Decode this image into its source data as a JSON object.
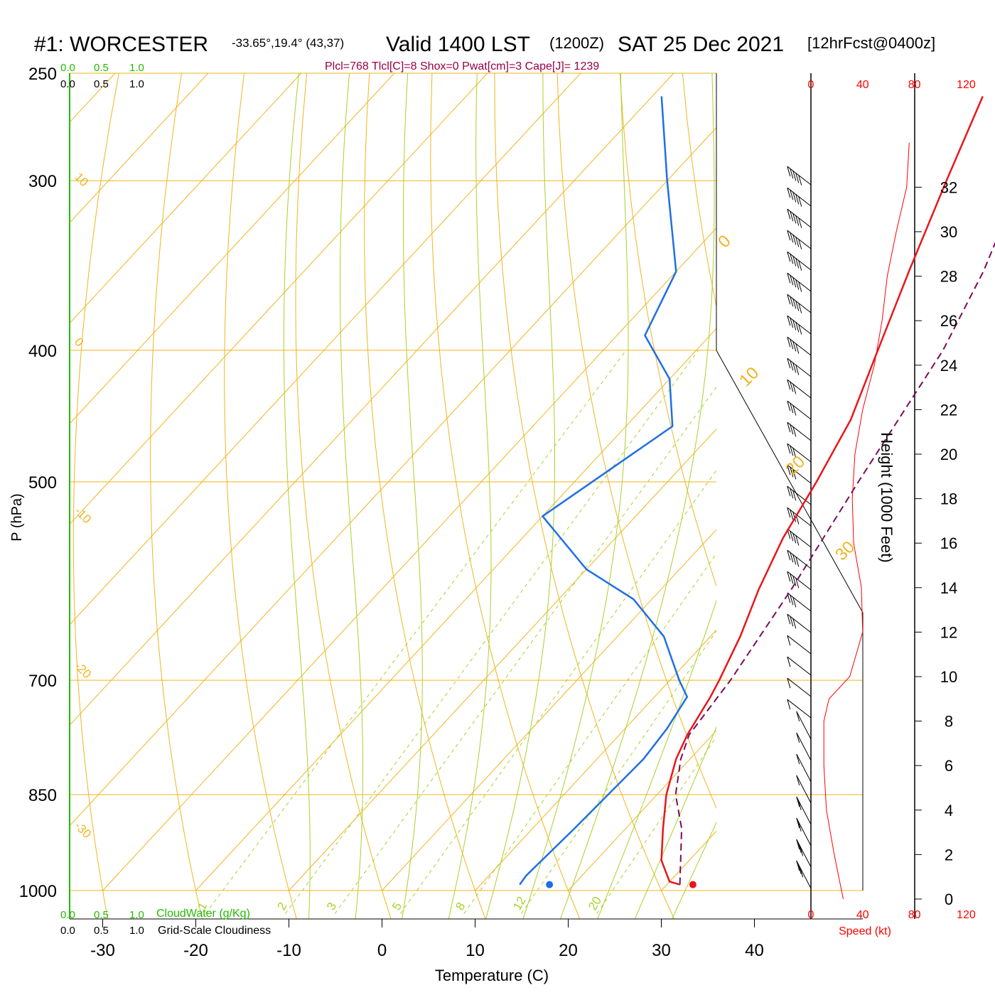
{
  "header": {
    "station": "#1: WORCESTER",
    "coords": "-33.65°,19.4° (43,37)",
    "valid": "Valid 1400 LST",
    "zulu": "(1200Z)",
    "date": "SAT 25 Dec 2021",
    "forecast": "[12hrFcst@0400z]"
  },
  "indices": "Plcl=768 Tlcl[C]=8 Shox=0 Pwat[cm]=3 Cape[J]= 1239",
  "scales": {
    "top_green": [
      "0.0",
      "0.5",
      "1.0"
    ],
    "top_black": [
      "0.0",
      "0.5",
      "1.0"
    ],
    "bottom_green": [
      "0.0",
      "0.5",
      "1.0"
    ],
    "bottom_black": [
      "0.0",
      "0.5",
      "1.0"
    ],
    "cloudwater_label": "CloudWater (g/Kg)",
    "cloudiness_label": "Grid-Scale Cloudiness"
  },
  "colors": {
    "temperature": "#e8161b",
    "dewpoint": "#1f6fe8",
    "parcel": "#7a0b5a",
    "isotherm": "#f0b41e",
    "moist_adiabat": "#a8d12a",
    "mixing_ratio": "#a8d12a",
    "header_index": "#990044",
    "green_text": "#22bb00",
    "speed": "#ff0000"
  },
  "chart_data": {
    "type": "skew-t",
    "xlabel": "Temperature (C)",
    "ylabel": "P (hPa)",
    "height_label": "Height (1000 Feet)",
    "speed_label": "Speed (kt)",
    "pressure_ticks": [
      250,
      300,
      400,
      500,
      700,
      850,
      1000
    ],
    "temperature_ticks": [
      -30,
      -20,
      -10,
      0,
      10,
      20,
      30,
      40
    ],
    "height_ticks": [
      0,
      2,
      4,
      6,
      8,
      10,
      12,
      14,
      16,
      18,
      20,
      22,
      24,
      26,
      28,
      30,
      32
    ],
    "speed_ticks": [
      0,
      40,
      80,
      120
    ],
    "isotherm_labels": [
      10,
      0,
      -10,
      -20,
      -30
    ],
    "isotherm_labels_right": [
      0,
      10,
      20,
      30
    ],
    "mixing_ratio_labels": [
      1,
      2,
      3,
      5,
      8,
      12,
      20
    ],
    "temperature_profile": [
      {
        "p": 990,
        "t": 31.4
      },
      {
        "p": 985,
        "t": 30.0
      },
      {
        "p": 950,
        "t": 27.0
      },
      {
        "p": 900,
        "t": 24.0
      },
      {
        "p": 850,
        "t": 21.0
      },
      {
        "p": 800,
        "t": 18.5
      },
      {
        "p": 768,
        "t": 17.3
      },
      {
        "p": 720,
        "t": 16.0
      },
      {
        "p": 700,
        "t": 15.3
      },
      {
        "p": 650,
        "t": 13.2
      },
      {
        "p": 600,
        "t": 10.5
      },
      {
        "p": 550,
        "t": 8.0
      },
      {
        "p": 500,
        "t": 6.0
      },
      {
        "p": 450,
        "t": 3.5
      },
      {
        "p": 400,
        "t": -0.5
      },
      {
        "p": 350,
        "t": -5.0
      },
      {
        "p": 300,
        "t": -10.0
      },
      {
        "p": 260,
        "t": -14.5
      }
    ],
    "dewpoint_profile": [
      {
        "p": 990,
        "td": 14.2
      },
      {
        "p": 975,
        "td": 14.0
      },
      {
        "p": 900,
        "td": 14.5
      },
      {
        "p": 800,
        "td": 15.0
      },
      {
        "p": 760,
        "td": 14.5
      },
      {
        "p": 720,
        "td": 13.5
      },
      {
        "p": 700,
        "td": 11.0
      },
      {
        "p": 650,
        "td": 5.0
      },
      {
        "p": 610,
        "td": -2.0
      },
      {
        "p": 580,
        "td": -10.0
      },
      {
        "p": 530,
        "td": -20.0
      },
      {
        "p": 455,
        "td": -15.0
      },
      {
        "p": 420,
        "td": -20.0
      },
      {
        "p": 390,
        "td": -27.0
      },
      {
        "p": 350,
        "td": -30.0
      },
      {
        "p": 300,
        "td": -40.0
      },
      {
        "p": 260,
        "td": -49.0
      }
    ],
    "parcel_profile": [
      {
        "p": 990,
        "t": 31.4
      },
      {
        "p": 900,
        "t": 26.0
      },
      {
        "p": 850,
        "t": 22.0
      },
      {
        "p": 800,
        "t": 19.0
      },
      {
        "p": 768,
        "t": 17.5
      },
      {
        "p": 700,
        "t": 16.5
      },
      {
        "p": 600,
        "t": 14.0
      },
      {
        "p": 500,
        "t": 10.5
      },
      {
        "p": 400,
        "t": 6.5
      },
      {
        "p": 350,
        "t": 3.0
      },
      {
        "p": 300,
        "t": -2.0
      },
      {
        "p": 260,
        "t": -8.0
      }
    ],
    "surface_points": {
      "temperature": 32.8,
      "dewpoint": 17.4
    },
    "wind_speed_profile": [
      {
        "h": 0,
        "s": 25
      },
      {
        "h": 2,
        "s": 18
      },
      {
        "h": 4,
        "s": 12
      },
      {
        "h": 6,
        "s": 10
      },
      {
        "h": 8,
        "s": 10
      },
      {
        "h": 9,
        "s": 14
      },
      {
        "h": 10,
        "s": 30
      },
      {
        "h": 12,
        "s": 40
      },
      {
        "h": 14,
        "s": 39
      },
      {
        "h": 16,
        "s": 33
      },
      {
        "h": 18,
        "s": 32
      },
      {
        "h": 20,
        "s": 34
      },
      {
        "h": 22,
        "s": 40
      },
      {
        "h": 24,
        "s": 49
      },
      {
        "h": 26,
        "s": 55
      },
      {
        "h": 28,
        "s": 59
      },
      {
        "h": 30,
        "s": 66
      },
      {
        "h": 32,
        "s": 74
      },
      {
        "h": 34,
        "s": 76
      }
    ]
  }
}
